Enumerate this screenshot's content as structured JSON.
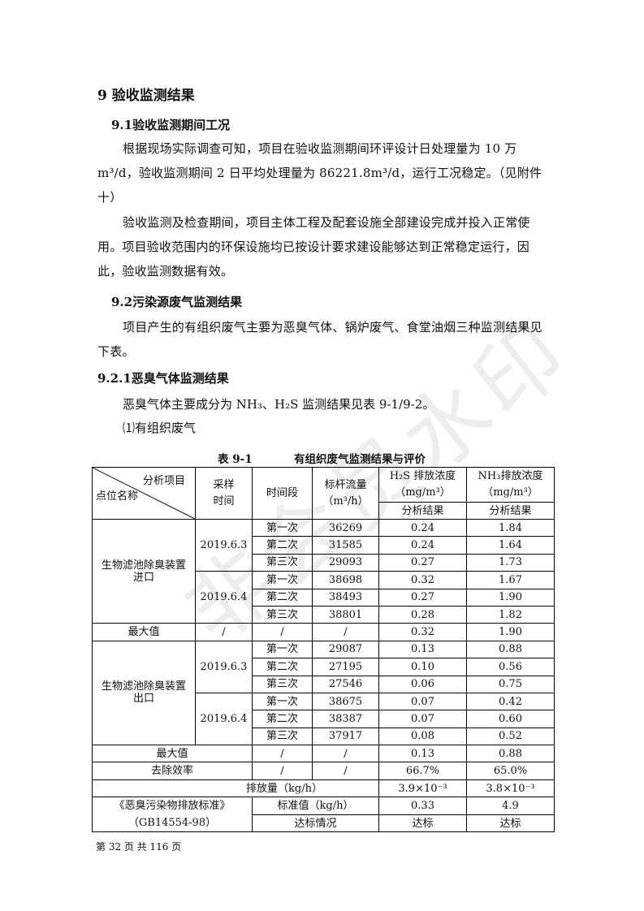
{
  "section_title": "9 验收监测结果",
  "s91": {
    "title": "9.1验收监测期间工况",
    "para1": "根据现场实际调查可知，项目在验收监测期间环评设计日处理量为 10 万m³/d，验收监测期间 2 日平均处理量为 86221.8m³/d，运行工况稳定。（见附件十）",
    "para2": "验收监测及检查期间，项目主体工程及配套设施全部建设完成并投入正常使用。项目验收范围内的环保设施均已按设计要求建设能够达到正常稳定运行，因此，验收监测数据有效。"
  },
  "s92": {
    "title": "9.2污染源废气监测结果",
    "para": "项目产生的有组织废气主要为恶臭气体、锅炉废气、食堂油烟三种监测结果见下表。"
  },
  "s921": {
    "title": "9.2.1恶臭气体监测结果",
    "para": "恶臭气体主要成分为 NH₃、H₂S 监测结果见表 9-1/9-2。",
    "item": "⑴有组织废气"
  },
  "table": {
    "number": "表 9-1",
    "caption": "有组织废气监测结果与评价",
    "headers": {
      "diag_top": "分析项目",
      "diag_bottom": "点位名称",
      "sample_time": "采样\n时间",
      "period": "时间段",
      "flow": "标杆流量\n（m³/h）",
      "h2s": "H₂S 排放浓度\n（mg/m³）",
      "nh3": "NH₃排放浓度\n（mg/m³）",
      "result_h2s": "分析结果",
      "result_nh3": "分析结果"
    },
    "groups": [
      {
        "location": "生物滤池除臭装置进口",
        "dates": [
          {
            "date": "2019.6.3",
            "rows": [
              {
                "period": "第一次",
                "flow": "36269",
                "h2s": "0.24",
                "nh3": "1.84"
              },
              {
                "period": "第二次",
                "flow": "31585",
                "h2s": "0.24",
                "nh3": "1.64"
              },
              {
                "period": "第三次",
                "flow": "29093",
                "h2s": "0.27",
                "nh3": "1.73"
              }
            ]
          },
          {
            "date": "2019.6.4",
            "rows": [
              {
                "period": "第一次",
                "flow": "38698",
                "h2s": "0.32",
                "nh3": "1.67"
              },
              {
                "period": "第二次",
                "flow": "38493",
                "h2s": "0.27",
                "nh3": "1.90"
              },
              {
                "period": "第三次",
                "flow": "38801",
                "h2s": "0.28",
                "nh3": "1.82"
              }
            ]
          }
        ],
        "max": {
          "label": "最大值",
          "c1": "/",
          "c2": "/",
          "c3": "/",
          "h2s": "0.32",
          "nh3": "1.90"
        }
      },
      {
        "location": "生物滤池除臭装置出口",
        "dates": [
          {
            "date": "2019.6.3",
            "rows": [
              {
                "period": "第一次",
                "flow": "29087",
                "h2s": "0.13",
                "nh3": "0.88"
              },
              {
                "period": "第二次",
                "flow": "27195",
                "h2s": "0.10",
                "nh3": "0.56"
              },
              {
                "period": "第三次",
                "flow": "27546",
                "h2s": "0.06",
                "nh3": "0.75"
              }
            ]
          },
          {
            "date": "2019.6.4",
            "rows": [
              {
                "period": "第一次",
                "flow": "38675",
                "h2s": "0.07",
                "nh3": "0.42"
              },
              {
                "period": "第二次",
                "flow": "38387",
                "h2s": "0.07",
                "nh3": "0.60"
              },
              {
                "period": "第三次",
                "flow": "37917",
                "h2s": "0.08",
                "nh3": "0.52"
              }
            ]
          }
        ],
        "max": {
          "label": "最大值",
          "c2": "/",
          "c3": "/",
          "h2s": "0.13",
          "nh3": "0.88"
        }
      }
    ],
    "removal": {
      "label": "去除效率",
      "c2": "/",
      "c3": "/",
      "h2s": "66.7%",
      "nh3": "65.0%"
    },
    "emission": {
      "label": "排放量（kg/h）",
      "h2s": "3.9×10⁻³",
      "nh3": "3.8×10⁻³"
    },
    "standard": {
      "name": "《恶臭污染物排放标准》\n（GB14554-98）",
      "limit_label": "标准值（kg/h）",
      "limit_h2s": "0.33",
      "limit_nh3": "4.9",
      "compliance_label": "达标情况",
      "compliance_h2s": "达标",
      "compliance_nh3": "达标"
    }
  },
  "footer": "第 32 页 共 116 页",
  "watermark": "非会员水印"
}
